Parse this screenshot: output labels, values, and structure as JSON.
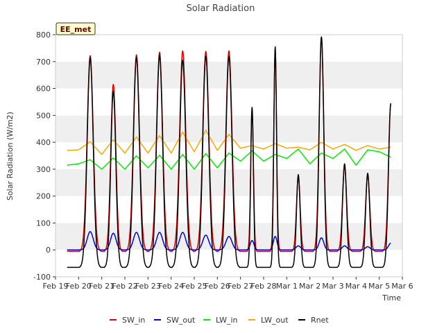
{
  "chart_data": {
    "type": "line",
    "title": "Solar Radiation",
    "xlabel": "Time",
    "ylabel": "Solar Radiation (W/m2)",
    "ylim": [
      -100,
      800
    ],
    "yticks": [
      -100,
      0,
      100,
      200,
      300,
      400,
      500,
      600,
      700,
      800
    ],
    "xlim": [
      "2021-02-19",
      "2021-03-06"
    ],
    "xtick_labels": [
      "Feb 19",
      "Feb 20",
      "Feb 21",
      "Feb 22",
      "Feb 23",
      "Feb 24",
      "Feb 25",
      "Feb 26",
      "Feb 27",
      "Feb 28",
      "Mar 1",
      "Mar 2",
      "Mar 3",
      "Mar 4",
      "Mar 5",
      "Mar 6"
    ],
    "data_start": "2021-02-19T12:00",
    "data_end": "2021-03-05T12:00",
    "station_label": "EE_met",
    "grid": "horizontal bands",
    "legend_position": "bottom",
    "series": [
      {
        "name": "SW_in",
        "color": "#dd0000",
        "night": -5,
        "days": [
          {
            "date": "2021-02-20",
            "peak": 722,
            "width": 0.13
          },
          {
            "date": "2021-02-21",
            "peak": 615,
            "width": 0.11
          },
          {
            "date": "2021-02-22",
            "peak": 725,
            "width": 0.13
          },
          {
            "date": "2021-02-23",
            "peak": 735,
            "width": 0.13
          },
          {
            "date": "2021-02-24",
            "peak": 740,
            "width": 0.13
          },
          {
            "date": "2021-02-25",
            "peak": 738,
            "width": 0.13
          },
          {
            "date": "2021-02-26",
            "peak": 740,
            "width": 0.13
          },
          {
            "date": "2021-02-27",
            "peak": 520,
            "width": 0.06
          },
          {
            "date": "2021-02-28",
            "peak": 740,
            "width": 0.06
          },
          {
            "date": "2021-03-01",
            "peak": 275,
            "width": 0.08
          },
          {
            "date": "2021-03-02",
            "peak": 790,
            "width": 0.1
          },
          {
            "date": "2021-03-03",
            "peak": 310,
            "width": 0.09
          },
          {
            "date": "2021-03-04",
            "peak": 280,
            "width": 0.09
          },
          {
            "date": "2021-03-05",
            "peak": 540,
            "width": 0.1
          }
        ]
      },
      {
        "name": "SW_out",
        "color": "#0000dd",
        "night": 0,
        "days": [
          {
            "date": "2021-02-20",
            "peak": 68,
            "width": 0.13
          },
          {
            "date": "2021-02-21",
            "peak": 62,
            "width": 0.12
          },
          {
            "date": "2021-02-22",
            "peak": 65,
            "width": 0.13
          },
          {
            "date": "2021-02-23",
            "peak": 65,
            "width": 0.13
          },
          {
            "date": "2021-02-24",
            "peak": 65,
            "width": 0.13
          },
          {
            "date": "2021-02-25",
            "peak": 55,
            "width": 0.13
          },
          {
            "date": "2021-02-26",
            "peak": 50,
            "width": 0.13
          },
          {
            "date": "2021-02-27",
            "peak": 35,
            "width": 0.08
          },
          {
            "date": "2021-02-28",
            "peak": 50,
            "width": 0.08
          },
          {
            "date": "2021-03-01",
            "peak": 15,
            "width": 0.1
          },
          {
            "date": "2021-03-02",
            "peak": 45,
            "width": 0.1
          },
          {
            "date": "2021-03-03",
            "peak": 15,
            "width": 0.1
          },
          {
            "date": "2021-03-04",
            "peak": 12,
            "width": 0.1
          },
          {
            "date": "2021-03-05",
            "peak": 25,
            "width": 0.1
          }
        ]
      },
      {
        "name": "LW_in",
        "color": "#00ee00",
        "points": [
          [
            "2021-02-19T12:00",
            315
          ],
          [
            "2021-02-20T00:00",
            320
          ],
          [
            "2021-02-20T12:00",
            335
          ],
          [
            "2021-02-21T00:00",
            300
          ],
          [
            "2021-02-21T12:00",
            342
          ],
          [
            "2021-02-22T00:00",
            300
          ],
          [
            "2021-02-22T12:00",
            350
          ],
          [
            "2021-02-23T00:00",
            305
          ],
          [
            "2021-02-23T12:00",
            352
          ],
          [
            "2021-02-24T00:00",
            300
          ],
          [
            "2021-02-24T12:00",
            355
          ],
          [
            "2021-02-25T00:00",
            300
          ],
          [
            "2021-02-25T12:00",
            358
          ],
          [
            "2021-02-26T00:00",
            305
          ],
          [
            "2021-02-26T12:00",
            360
          ],
          [
            "2021-02-27T00:00",
            330
          ],
          [
            "2021-02-27T12:00",
            368
          ],
          [
            "2021-02-28T00:00",
            330
          ],
          [
            "2021-02-28T12:00",
            355
          ],
          [
            "2021-03-01T00:00",
            340
          ],
          [
            "2021-03-01T12:00",
            375
          ],
          [
            "2021-03-02T00:00",
            320
          ],
          [
            "2021-03-02T12:00",
            360
          ],
          [
            "2021-03-03T00:00",
            340
          ],
          [
            "2021-03-03T12:00",
            375
          ],
          [
            "2021-03-04T00:00",
            315
          ],
          [
            "2021-03-04T12:00",
            372
          ],
          [
            "2021-03-05T00:00",
            365
          ],
          [
            "2021-03-05T12:00",
            345
          ]
        ]
      },
      {
        "name": "LW_out",
        "color": "#ffa500",
        "points": [
          [
            "2021-02-19T12:00",
            370
          ],
          [
            "2021-02-20T00:00",
            372
          ],
          [
            "2021-02-20T12:00",
            402
          ],
          [
            "2021-02-21T00:00",
            355
          ],
          [
            "2021-02-21T12:00",
            410
          ],
          [
            "2021-02-22T00:00",
            360
          ],
          [
            "2021-02-22T12:00",
            420
          ],
          [
            "2021-02-23T00:00",
            360
          ],
          [
            "2021-02-23T12:00",
            425
          ],
          [
            "2021-02-24T00:00",
            360
          ],
          [
            "2021-02-24T12:00",
            438
          ],
          [
            "2021-02-25T00:00",
            365
          ],
          [
            "2021-02-25T12:00",
            445
          ],
          [
            "2021-02-26T00:00",
            370
          ],
          [
            "2021-02-26T12:00",
            430
          ],
          [
            "2021-02-27T00:00",
            378
          ],
          [
            "2021-02-27T12:00",
            388
          ],
          [
            "2021-02-28T00:00",
            375
          ],
          [
            "2021-02-28T12:00",
            395
          ],
          [
            "2021-03-01T00:00",
            378
          ],
          [
            "2021-03-01T12:00",
            382
          ],
          [
            "2021-03-02T00:00",
            372
          ],
          [
            "2021-03-02T12:00",
            400
          ],
          [
            "2021-03-03T00:00",
            375
          ],
          [
            "2021-03-03T12:00",
            392
          ],
          [
            "2021-03-04T00:00",
            370
          ],
          [
            "2021-03-04T12:00",
            388
          ],
          [
            "2021-03-05T00:00",
            375
          ],
          [
            "2021-03-05T12:00",
            382
          ]
        ]
      },
      {
        "name": "Rnet",
        "color": "#000000",
        "night": -65,
        "days": [
          {
            "date": "2021-02-20",
            "peak": 715,
            "width": 0.13
          },
          {
            "date": "2021-02-21",
            "peak": 590,
            "width": 0.11
          },
          {
            "date": "2021-02-22",
            "peak": 715,
            "width": 0.13
          },
          {
            "date": "2021-02-23",
            "peak": 725,
            "width": 0.13
          },
          {
            "date": "2021-02-24",
            "peak": 705,
            "width": 0.13
          },
          {
            "date": "2021-02-25",
            "peak": 720,
            "width": 0.13
          },
          {
            "date": "2021-02-26",
            "peak": 720,
            "width": 0.13
          },
          {
            "date": "2021-02-27",
            "peak": 530,
            "width": 0.06
          },
          {
            "date": "2021-02-28",
            "peak": 755,
            "width": 0.06
          },
          {
            "date": "2021-03-01",
            "peak": 280,
            "width": 0.08
          },
          {
            "date": "2021-03-02",
            "peak": 792,
            "width": 0.1
          },
          {
            "date": "2021-03-03",
            "peak": 320,
            "width": 0.09
          },
          {
            "date": "2021-03-04",
            "peak": 285,
            "width": 0.09
          },
          {
            "date": "2021-03-05",
            "peak": 545,
            "width": 0.1
          }
        ]
      }
    ]
  }
}
